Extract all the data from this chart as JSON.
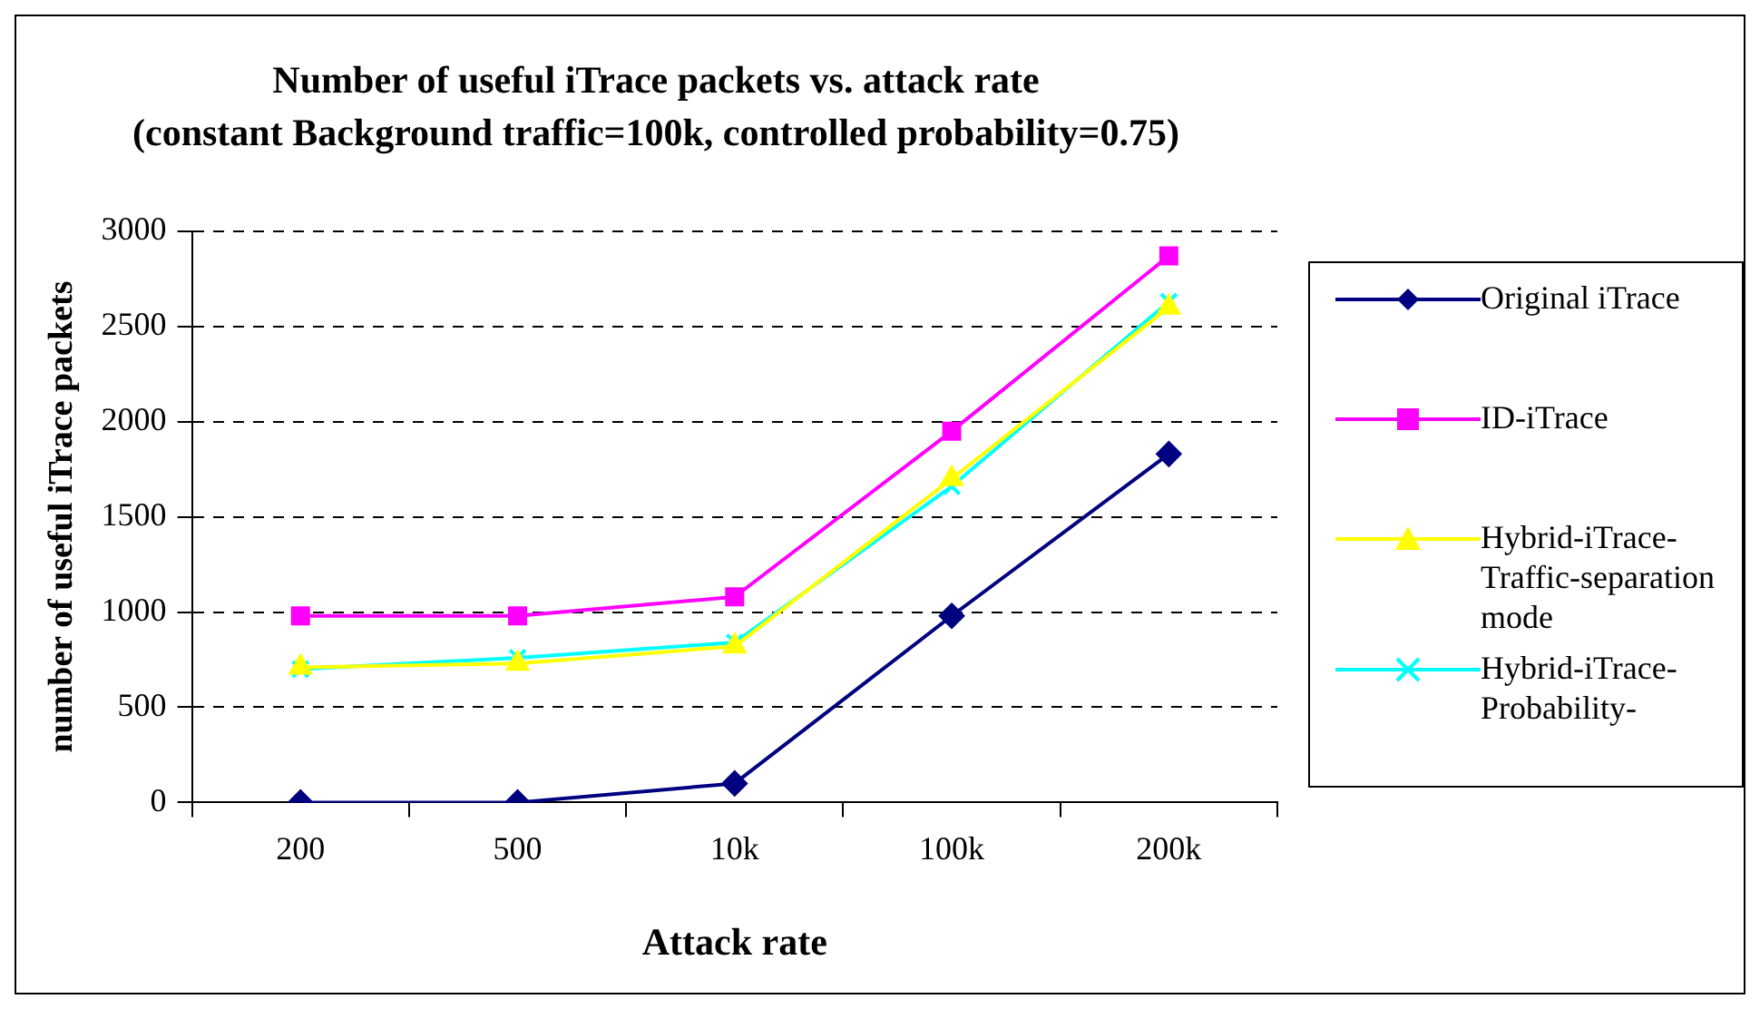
{
  "chart_data": {
    "type": "line",
    "title": "Number of useful iTrace packets vs. attack rate",
    "subtitle": "(constant Background traffic=100k, controlled probability=0.75)",
    "xlabel": "Attack rate",
    "ylabel": "number of useful iTrace packets",
    "categories": [
      "200",
      "500",
      "10k",
      "100k",
      "200k"
    ],
    "ylim": [
      0,
      3000
    ],
    "yticks": [
      0,
      500,
      1000,
      1500,
      2000,
      2500,
      3000
    ],
    "grid": "y",
    "legend": "right",
    "series": [
      {
        "name": "Original iTrace",
        "color": "#000080",
        "marker": "diamond",
        "values": [
          0,
          0,
          100,
          980,
          1830
        ]
      },
      {
        "name": "ID-iTrace",
        "color": "#ff00ff",
        "marker": "square",
        "values": [
          980,
          980,
          1080,
          1950,
          2870
        ]
      },
      {
        "name": "Hybrid-iTrace-Traffic-separation mode",
        "color": "#ffff00",
        "marker": "triangle",
        "values": [
          710,
          730,
          820,
          1700,
          2600
        ]
      },
      {
        "name": "Hybrid-iTrace-Probability-",
        "color": "#00ffff",
        "marker": "cross",
        "values": [
          700,
          760,
          840,
          1660,
          2630
        ]
      }
    ]
  }
}
